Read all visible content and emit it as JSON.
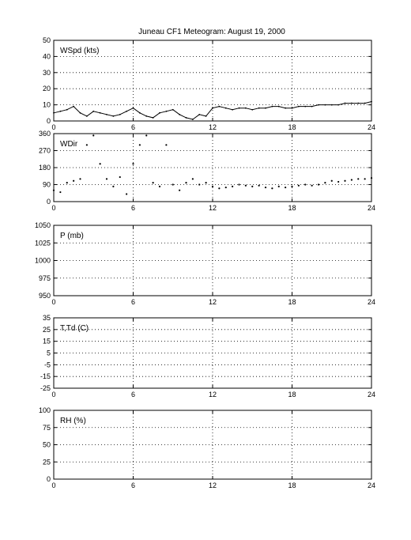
{
  "title": "Juneau CF1 Meteogram:     August 19, 2000",
  "x_ticks": [
    0,
    6,
    12,
    18,
    24
  ],
  "chart_data": [
    {
      "type": "line",
      "label": "WSpd (kts)",
      "xlim": [
        0,
        24
      ],
      "ylim": [
        0,
        50
      ],
      "y_ticks": [
        0,
        10,
        20,
        30,
        40,
        50
      ],
      "grid": true,
      "x": [
        0,
        0.5,
        1,
        1.5,
        2,
        2.5,
        3,
        3.5,
        4,
        4.5,
        5,
        5.5,
        6,
        6.5,
        7,
        7.5,
        8,
        8.5,
        9,
        9.5,
        10,
        10.5,
        11,
        11.5,
        12,
        12.5,
        13,
        13.5,
        14,
        14.5,
        15,
        15.5,
        16,
        16.5,
        17,
        17.5,
        18,
        18.5,
        19,
        19.5,
        20,
        20.5,
        21,
        21.5,
        22,
        22.5,
        23,
        23.5,
        24
      ],
      "y": [
        5,
        6,
        7,
        9,
        5,
        3,
        6,
        5,
        4,
        3,
        4,
        6,
        8,
        5,
        3,
        2,
        5,
        6,
        7,
        4,
        2,
        1,
        4,
        3,
        8,
        9,
        8,
        7,
        8,
        8,
        7,
        8,
        8,
        9,
        9,
        8,
        8,
        9,
        9,
        9,
        10,
        10,
        10,
        10,
        11,
        11,
        11,
        11,
        12
      ]
    },
    {
      "type": "scatter",
      "label": "WDir",
      "xlim": [
        0,
        24
      ],
      "ylim": [
        0,
        360
      ],
      "y_ticks": [
        0,
        90,
        180,
        270,
        360
      ],
      "grid": true,
      "x": [
        0,
        0.5,
        1,
        1.5,
        2,
        2.5,
        3,
        3.5,
        4,
        4.5,
        5,
        5.5,
        6,
        6.5,
        7,
        7.5,
        8,
        8.5,
        9,
        9.5,
        10,
        10.5,
        11,
        11.5,
        12,
        12.5,
        13,
        13.5,
        14,
        14.5,
        15,
        15.5,
        16,
        16.5,
        17,
        17.5,
        18,
        18.5,
        19,
        19.5,
        20,
        20.5,
        21,
        21.5,
        22,
        22.5,
        23,
        23.5,
        24
      ],
      "y": [
        60,
        50,
        100,
        110,
        120,
        300,
        350,
        200,
        120,
        80,
        130,
        40,
        200,
        300,
        350,
        100,
        80,
        300,
        90,
        60,
        100,
        120,
        90,
        100,
        80,
        70,
        75,
        80,
        90,
        85,
        80,
        85,
        75,
        70,
        80,
        75,
        80,
        85,
        90,
        85,
        90,
        100,
        110,
        105,
        110,
        115,
        120,
        120,
        125
      ]
    },
    {
      "type": "line",
      "label": "P (mb)",
      "xlim": [
        0,
        24
      ],
      "ylim": [
        950,
        1050
      ],
      "y_ticks": [
        950,
        975,
        1000,
        1025,
        1050
      ],
      "grid": true,
      "x": [],
      "y": []
    },
    {
      "type": "line",
      "label": "T,Td (C)",
      "xlim": [
        0,
        24
      ],
      "ylim": [
        -25,
        35
      ],
      "y_ticks": [
        -25,
        -15,
        -5,
        5,
        15,
        25,
        35
      ],
      "grid": true,
      "x": [],
      "y": []
    },
    {
      "type": "line",
      "label": "RH (%)",
      "xlim": [
        0,
        24
      ],
      "ylim": [
        0,
        100
      ],
      "y_ticks": [
        0,
        25,
        50,
        75,
        100
      ],
      "grid": true,
      "x": [],
      "y": []
    }
  ]
}
